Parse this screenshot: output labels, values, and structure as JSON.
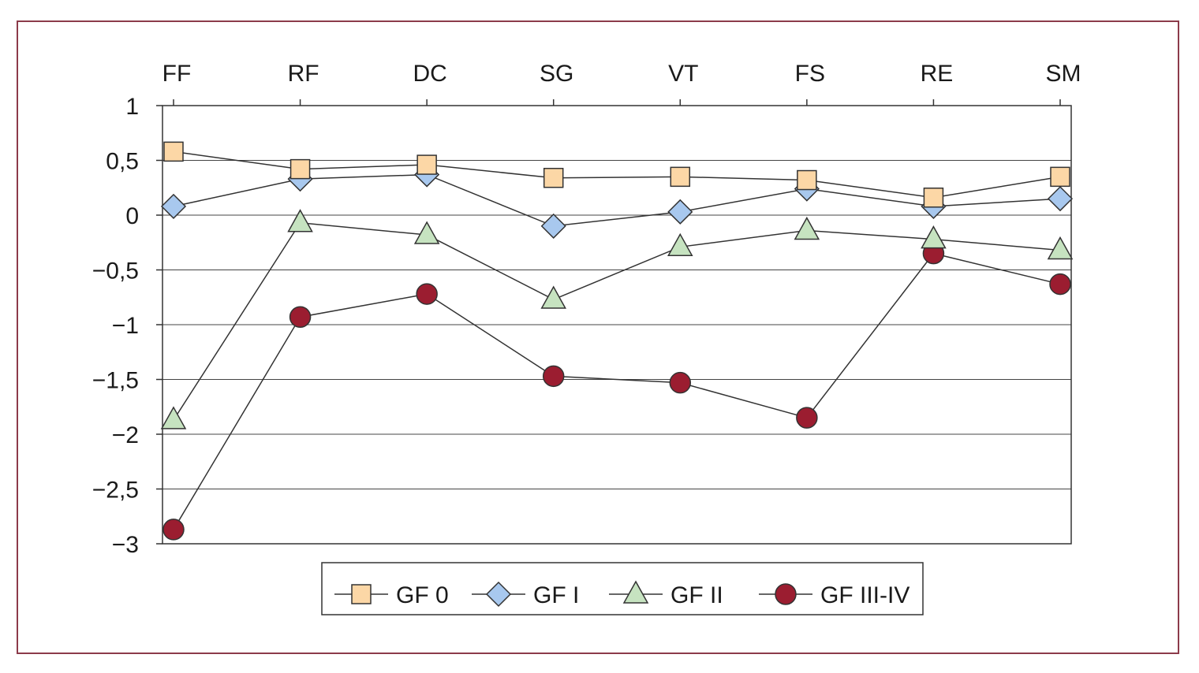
{
  "chart_data": {
    "type": "line",
    "title": "",
    "xlabel": "",
    "ylabel": "",
    "categories": [
      "FF",
      "RF",
      "DC",
      "SG",
      "VT",
      "FS",
      "RE",
      "SM"
    ],
    "x_axis_position": "top",
    "ylim": [
      -3,
      1
    ],
    "yticks": [
      1,
      0.5,
      0,
      -0.5,
      -1,
      -1.5,
      -2,
      -2.5,
      -3
    ],
    "ytick_labels": [
      "1",
      "0,5",
      "0",
      "−0,5",
      "−1",
      "−1,5",
      "−2",
      "−2,5",
      "−3"
    ],
    "grid": "horizontal",
    "legend_placement": "bottom",
    "series": [
      {
        "name": "GF 0",
        "marker": "square",
        "color": "#fcd7a6",
        "values": [
          0.58,
          0.42,
          0.46,
          0.34,
          0.35,
          0.32,
          0.16,
          0.35
        ]
      },
      {
        "name": "GF I",
        "marker": "diamond",
        "color": "#a8c8ee",
        "values": [
          0.08,
          0.33,
          0.37,
          -0.1,
          0.03,
          0.24,
          0.08,
          0.15
        ]
      },
      {
        "name": "GF II",
        "marker": "triangle",
        "color": "#c6e3c0",
        "values": [
          -1.87,
          -0.07,
          -0.18,
          -0.77,
          -0.29,
          -0.14,
          -0.22,
          -0.32
        ]
      },
      {
        "name": "GF III-IV",
        "marker": "circle",
        "color": "#9b1d30",
        "values": [
          -2.87,
          -0.93,
          -0.72,
          -1.47,
          -1.53,
          -1.85,
          -0.35,
          -0.63
        ]
      }
    ]
  }
}
